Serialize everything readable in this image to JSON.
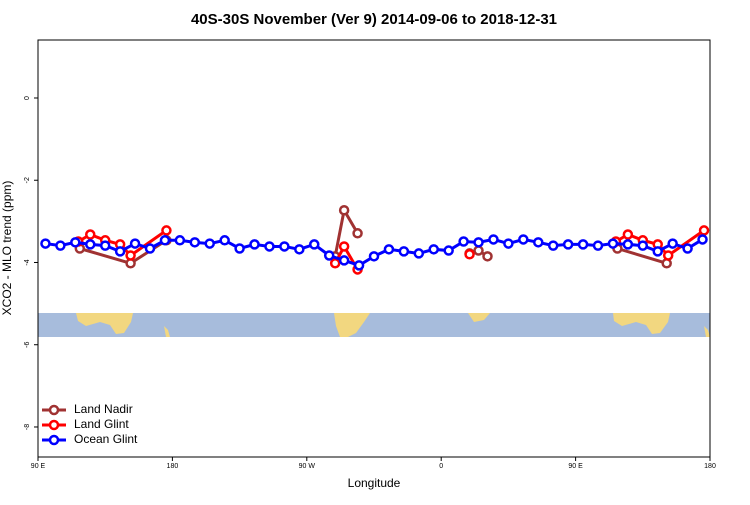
{
  "chart_data": {
    "type": "line",
    "title": "40S-30S November (Ver 9)   2014-09-06 to 2018-12-31",
    "x_label": "Longitude",
    "y_label": "XCO2 - MLO trend (ppm)",
    "xlim": [
      90,
      540
    ],
    "ylim": [
      -8.73,
      1.41
    ],
    "xticks": [
      {
        "value": 90,
        "label": "90 E"
      },
      {
        "value": 180,
        "label": "180"
      },
      {
        "value": 270,
        "label": "90 W"
      },
      {
        "value": 360,
        "label": "0"
      },
      {
        "value": 450,
        "label": "90 E"
      },
      {
        "value": 540,
        "label": "180"
      }
    ],
    "yticks": [
      0,
      -2,
      -4,
      -6,
      -8
    ],
    "legend": "bottom-left",
    "series": [
      {
        "name": "Land Nadir",
        "color": "#a03232",
        "x": [
          118,
          152,
          176,
          null,
          289,
          295,
          304,
          null,
          379,
          385,
          391,
          null,
          478,
          511
        ],
        "values": [
          -3.66,
          -4.02,
          -3.46,
          null,
          -3.85,
          -2.73,
          -3.29,
          null,
          -3.78,
          -3.71,
          -3.85,
          null,
          -3.66,
          -4.02
        ]
      },
      {
        "name": "Land Glint",
        "color": "#ff0000",
        "x": [
          117,
          125,
          135,
          145,
          152,
          176,
          null,
          289,
          295,
          304,
          null,
          379,
          null,
          477,
          485,
          495,
          505,
          512,
          536
        ],
        "values": [
          -3.49,
          -3.32,
          -3.46,
          -3.56,
          -3.83,
          -3.22,
          null,
          -4.02,
          -3.61,
          -4.17,
          null,
          -3.8,
          null,
          -3.49,
          -3.32,
          -3.46,
          -3.56,
          -3.83,
          -3.22
        ]
      },
      {
        "name": "Ocean Glint",
        "color": "#0000ff",
        "x": [
          95,
          105,
          115,
          125,
          135,
          145,
          155,
          165,
          175,
          185,
          195,
          205,
          215,
          225,
          235,
          245,
          255,
          265,
          275,
          285,
          295,
          305,
          315,
          325,
          335,
          345,
          355,
          365,
          375,
          385,
          395,
          405,
          415,
          425,
          435,
          445,
          455,
          465,
          475,
          485,
          495,
          505,
          515,
          525,
          535
        ],
        "values": [
          -3.54,
          -3.59,
          -3.51,
          -3.56,
          -3.59,
          -3.73,
          -3.54,
          -3.66,
          -3.46,
          -3.46,
          -3.51,
          -3.54,
          -3.46,
          -3.66,
          -3.56,
          -3.61,
          -3.61,
          -3.68,
          -3.56,
          -3.83,
          -3.95,
          -4.07,
          -3.85,
          -3.68,
          -3.73,
          -3.78,
          -3.68,
          -3.71,
          -3.49,
          -3.51,
          -3.44,
          -3.54,
          -3.44,
          -3.51,
          -3.59,
          -3.56,
          -3.56,
          -3.59,
          -3.54,
          -3.56,
          -3.59,
          -3.73,
          -3.54,
          -3.66,
          -3.44
        ]
      }
    ]
  }
}
